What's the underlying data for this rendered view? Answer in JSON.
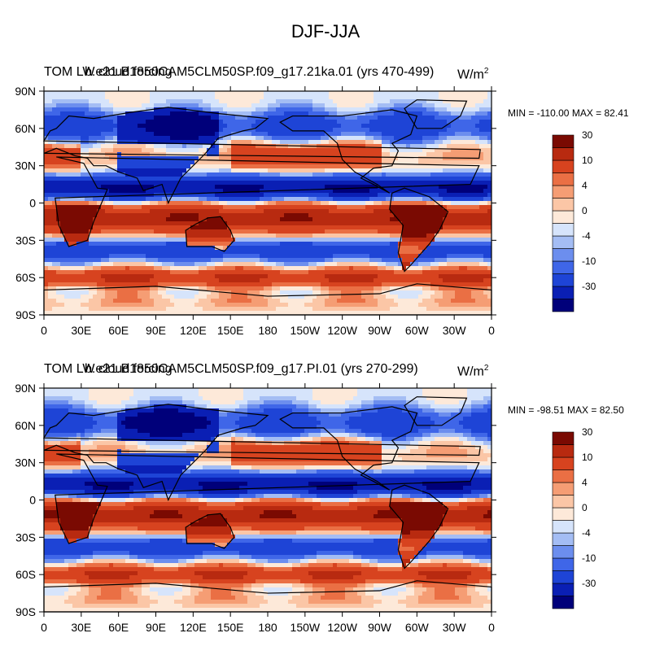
{
  "title": "DJF-JJA",
  "colorbar": {
    "colors": [
      "#00007a",
      "#0a1fb4",
      "#1e44d6",
      "#3f66e8",
      "#6c8eee",
      "#a4bdf4",
      "#d6e4fb",
      "#fde9d9",
      "#fbc6a6",
      "#f59d74",
      "#ea6f44",
      "#d7431f",
      "#b82a10",
      "#7a0a02"
    ],
    "labels": [
      "-30",
      "-10",
      "-4",
      "0",
      "4",
      "10",
      "30"
    ]
  },
  "chart_data": [
    {
      "type": "heatmap",
      "title_left": "TOM LW cloud forcing",
      "title_right": "b.e21.B1850CAM5CLM50SP.f09_g17.21ka.01 (yrs 470-499)",
      "units_base": "W/m",
      "units_exp": "2",
      "min_label": "MIN = -110.00",
      "max_label": "MAX =  82.41",
      "min": -110.0,
      "max": 82.41,
      "xticks": [
        "0",
        "30E",
        "60E",
        "90E",
        "120E",
        "150E",
        "180",
        "150W",
        "120W",
        "90W",
        "60W",
        "30W",
        "0"
      ],
      "yticks": [
        "90N",
        "60N",
        "30N",
        "0",
        "30S",
        "60S",
        "90S"
      ],
      "xlim": [
        0,
        360
      ],
      "ylim": [
        -90,
        90
      ],
      "contour_levels": [
        -40,
        -30,
        -20,
        -10,
        -6,
        -4,
        -2,
        0,
        2,
        4,
        6,
        10,
        20,
        30,
        40
      ]
    },
    {
      "type": "heatmap",
      "title_left": "TOM LW cloud forcing",
      "title_right": "b.e21.B1850CAM5CLM50SP.f09_g17.PI.01 (yrs 270-299)",
      "units_base": "W/m",
      "units_exp": "2",
      "min_label": "MIN = -98.51",
      "max_label": "MAX =  82.50",
      "min": -98.51,
      "max": 82.5,
      "xticks": [
        "0",
        "30E",
        "60E",
        "90E",
        "120E",
        "150E",
        "180",
        "150W",
        "120W",
        "90W",
        "60W",
        "30W",
        "0"
      ],
      "yticks": [
        "90N",
        "60N",
        "30N",
        "0",
        "30S",
        "60S",
        "90S"
      ],
      "xlim": [
        0,
        360
      ],
      "ylim": [
        -90,
        90
      ],
      "contour_levels": [
        -40,
        -30,
        -20,
        -10,
        -6,
        -4,
        -2,
        0,
        2,
        4,
        6,
        10,
        20,
        30,
        40
      ]
    }
  ]
}
